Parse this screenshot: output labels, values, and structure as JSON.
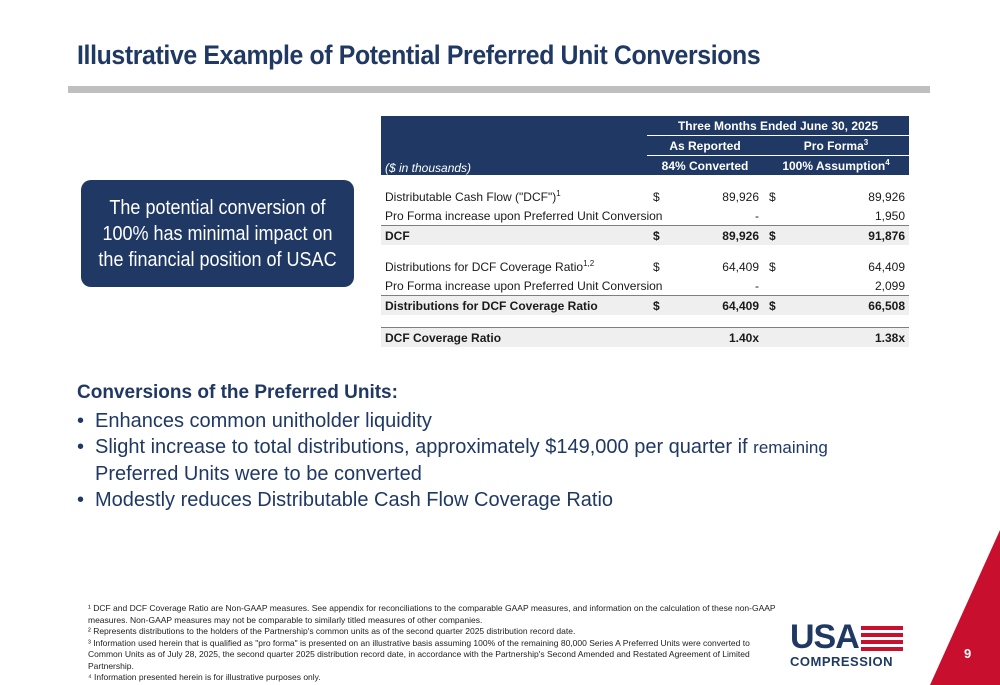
{
  "title": "Illustrative Example of Potential Preferred Unit Conversions",
  "callout": {
    "text": "The potential conversion of 100% has minimal impact on the financial position of USAC"
  },
  "table": {
    "period_header": "Three Months Ended June 30, 2025",
    "units_label": "($ in thousands)",
    "col1_header": "As Reported",
    "col1_sub": "84% Converted",
    "col2_header": "Pro Forma",
    "col2_header_sup": "3",
    "col2_sub": "100% Assumption",
    "col2_sub_sup": "4",
    "rows": {
      "dcf": {
        "label": "Distributable Cash Flow (\"DCF\")",
        "sup": "1",
        "dollar1": "$",
        "v1": "89,926",
        "dollar2": "$",
        "v2": "89,926"
      },
      "dcf_pf": {
        "label": "Pro Forma increase upon Preferred Unit Conversion",
        "v1": "-",
        "v2": "1,950"
      },
      "dcf_total": {
        "label": "DCF",
        "dollar1": "$",
        "v1": "89,926",
        "dollar2": "$",
        "v2": "91,876"
      },
      "dist": {
        "label": "Distributions for DCF Coverage Ratio",
        "sup": "1,2",
        "dollar1": "$",
        "v1": "64,409",
        "dollar2": "$",
        "v2": "64,409"
      },
      "dist_pf": {
        "label": "Pro Forma increase upon Preferred Unit Conversion",
        "v1": "-",
        "v2": "2,099"
      },
      "dist_total": {
        "label": "Distributions for DCF Coverage Ratio",
        "dollar1": "$",
        "v1": "64,409",
        "dollar2": "$",
        "v2": "66,508"
      },
      "ratio": {
        "label": "DCF Coverage Ratio",
        "v1": "1.40x",
        "v2": "1.38x"
      }
    }
  },
  "conversions": {
    "heading": "Conversions of the Preferred Units:",
    "bullet_char": "•",
    "b1": "Enhances common unitholder liquidity",
    "b2_main": "Slight increase to total distributions, approximately $149,000 per quarter if",
    "b2_small": "remaining",
    "b2_cont": "Preferred Units were to be converted",
    "b3": "Modestly reduces Distributable Cash Flow Coverage Ratio"
  },
  "footnotes": {
    "f1": "¹ DCF and DCF Coverage Ratio are Non-GAAP measures. See appendix for reconciliations to the comparable GAAP measures, and information on the calculation of these non-GAAP measures. Non-GAAP measures may not be comparable to similarly titled measures of other companies.",
    "f2": "² Represents distributions to the holders of the Partnership's common units as of the second quarter 2025 distribution record date.",
    "f3": "³ Information used herein that is qualified as \"pro forma\" is presented on an illustrative basis assuming 100% of the remaining 80,000 Series A Preferred Units were converted to Common Units as of July 28, 2025, the second quarter 2025 distribution record date, in accordance with the Partnership's Second Amended and Restated Agreement of Limited Partnership.",
    "f4": "⁴ Information presented herein is for illustrative purposes only."
  },
  "logo": {
    "top": "USA",
    "bottom": "COMPRESSION"
  },
  "page_number": "9",
  "colors": {
    "navy": "#1f3864",
    "red": "#c8102e",
    "gray_rule": "#bfbfbf",
    "total_fill": "#efefef"
  }
}
